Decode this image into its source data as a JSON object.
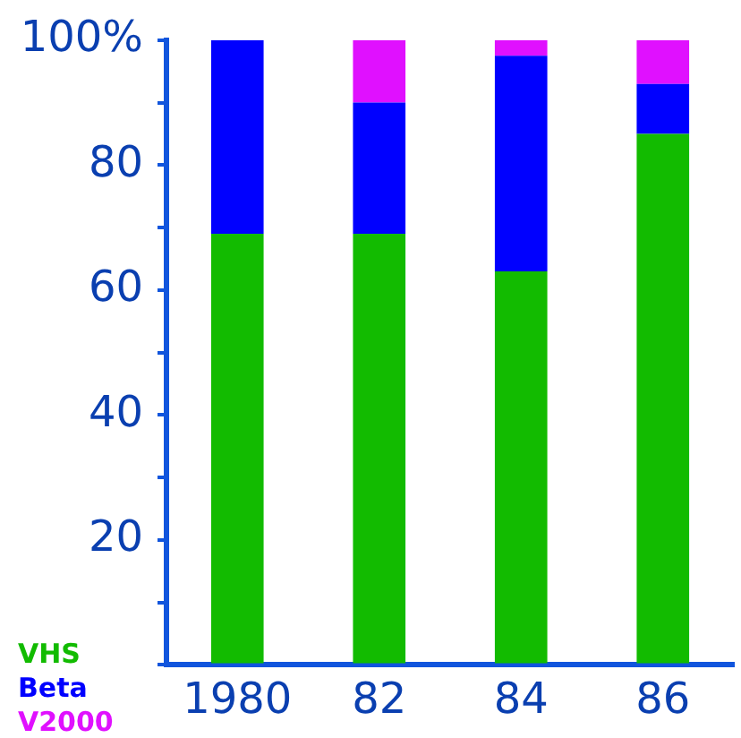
{
  "chart_data": {
    "type": "bar",
    "stacked": true,
    "categories": [
      "1980",
      "82",
      "84",
      "86"
    ],
    "series": [
      {
        "name": "VHS",
        "color": "#12bb00",
        "values": [
          69,
          69,
          63,
          85
        ]
      },
      {
        "name": "Beta",
        "color": "#0000ff",
        "values": [
          31,
          21,
          34.5,
          8
        ]
      },
      {
        "name": "V2000",
        "color": "#e010ff",
        "values": [
          0,
          10,
          2.5,
          7
        ]
      }
    ],
    "ylim": [
      0,
      100
    ],
    "yticks": [
      {
        "value": 0,
        "label": null
      },
      {
        "value": 10,
        "label": null
      },
      20,
      {
        "value": 30,
        "label": null
      },
      40,
      {
        "value": 50,
        "label": null
      },
      60,
      {
        "value": 70,
        "label": null
      },
      80,
      {
        "value": 90,
        "label": null
      },
      {
        "value": 100,
        "label": "100%"
      }
    ],
    "grid": false,
    "legend": "bottom left"
  }
}
